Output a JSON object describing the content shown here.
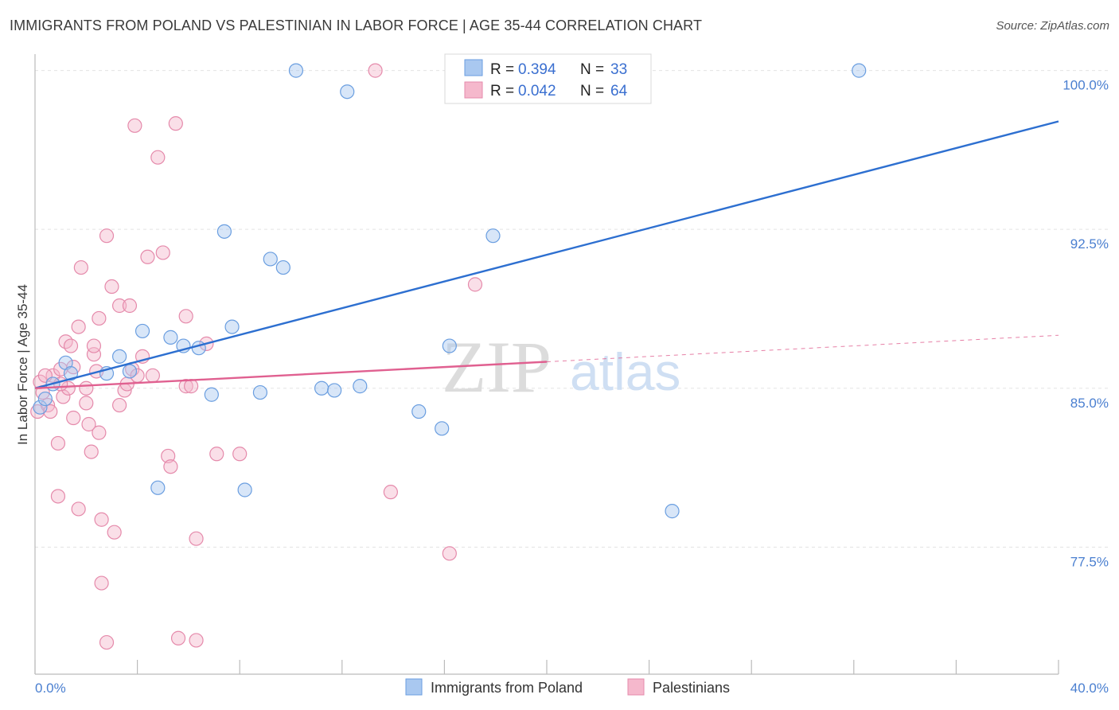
{
  "title": "IMMIGRANTS FROM POLAND VS PALESTINIAN IN LABOR FORCE | AGE 35-44 CORRELATION CHART",
  "source": "Source: ZipAtlas.com",
  "colors": {
    "blue_fill": "#a9c8f0",
    "blue_stroke": "#6a9ee0",
    "blue_line": "#2d6fd0",
    "pink_fill": "#f5b8cc",
    "pink_stroke": "#e58aab",
    "pink_line": "#e06090",
    "grid": "#e3e3e3",
    "tick_label": "#4a7fd0"
  },
  "legend": {
    "rows": [
      {
        "r_label": "R =",
        "r_value": "0.394",
        "n_label": "N =",
        "n_value": "33"
      },
      {
        "r_label": "R =",
        "r_value": "0.042",
        "n_label": "N =",
        "n_value": "64"
      }
    ]
  },
  "watermark": {
    "zip": "ZIP",
    "atlas": "atlas"
  },
  "chart_data": {
    "type": "scatter",
    "xlabel": "",
    "ylabel": "In Labor Force | Age 35-44",
    "xlim": [
      0,
      40
    ],
    "ylim": [
      71.5,
      101
    ],
    "x_tick_labels": [
      {
        "value": 0,
        "label": "0.0%"
      },
      {
        "value": 40,
        "label": "40.0%"
      }
    ],
    "y_tick_labels": [
      {
        "value": 100,
        "label": "100.0%"
      },
      {
        "value": 92.5,
        "label": "92.5%"
      },
      {
        "value": 85,
        "label": "85.0%"
      },
      {
        "value": 77.5,
        "label": "77.5%"
      }
    ],
    "grid": "horizontal dashed",
    "legend_position": "top-center",
    "series": [
      {
        "name": "Immigrants from Poland",
        "color": "blue",
        "trend": {
          "x": [
            0,
            40
          ],
          "y": [
            85.0,
            97.6
          ],
          "dashed_from": null
        },
        "points": [
          [
            0.2,
            84.1
          ],
          [
            0.4,
            84.5
          ],
          [
            0.7,
            85.2
          ],
          [
            1.2,
            86.2
          ],
          [
            1.4,
            85.7
          ],
          [
            2.8,
            85.7
          ],
          [
            3.3,
            86.5
          ],
          [
            3.7,
            85.8
          ],
          [
            4.2,
            87.7
          ],
          [
            4.8,
            80.3
          ],
          [
            5.3,
            87.4
          ],
          [
            5.8,
            87.0
          ],
          [
            6.4,
            86.9
          ],
          [
            6.9,
            84.7
          ],
          [
            7.4,
            92.4
          ],
          [
            7.7,
            87.9
          ],
          [
            8.2,
            80.2
          ],
          [
            8.8,
            84.8
          ],
          [
            9.2,
            91.1
          ],
          [
            9.7,
            90.7
          ],
          [
            10.2,
            100.0
          ],
          [
            11.2,
            85.0
          ],
          [
            11.7,
            84.9
          ],
          [
            12.2,
            99.0
          ],
          [
            12.7,
            85.1
          ],
          [
            15.0,
            83.9
          ],
          [
            15.9,
            83.1
          ],
          [
            16.2,
            87.0
          ],
          [
            17.2,
            100.0
          ],
          [
            17.9,
            92.2
          ],
          [
            19.2,
            100.0
          ],
          [
            24.9,
            79.2
          ],
          [
            32.2,
            100.0
          ]
        ]
      },
      {
        "name": "Palestinians",
        "color": "pink",
        "trend": {
          "x": [
            0,
            40
          ],
          "y": [
            85.0,
            87.5
          ],
          "dashed_from": 20
        },
        "points": [
          [
            0.1,
            83.9
          ],
          [
            0.2,
            85.3
          ],
          [
            0.3,
            84.8
          ],
          [
            0.5,
            84.2
          ],
          [
            0.6,
            83.9
          ],
          [
            0.7,
            85.6
          ],
          [
            0.9,
            79.9
          ],
          [
            0.9,
            82.4
          ],
          [
            1.0,
            85.9
          ],
          [
            1.1,
            84.6
          ],
          [
            1.2,
            87.2
          ],
          [
            1.3,
            85.0
          ],
          [
            1.4,
            87.0
          ],
          [
            1.5,
            86.0
          ],
          [
            1.5,
            83.6
          ],
          [
            1.7,
            87.9
          ],
          [
            1.7,
            79.3
          ],
          [
            1.8,
            90.7
          ],
          [
            2.0,
            85.0
          ],
          [
            2.0,
            84.3
          ],
          [
            2.1,
            83.3
          ],
          [
            2.2,
            82.0
          ],
          [
            2.3,
            86.6
          ],
          [
            2.3,
            87.0
          ],
          [
            2.5,
            82.9
          ],
          [
            2.5,
            88.3
          ],
          [
            2.6,
            75.8
          ],
          [
            2.6,
            78.8
          ],
          [
            2.8,
            73.0
          ],
          [
            2.8,
            92.2
          ],
          [
            3.0,
            89.8
          ],
          [
            3.1,
            78.2
          ],
          [
            3.3,
            88.9
          ],
          [
            3.3,
            84.2
          ],
          [
            3.5,
            84.9
          ],
          [
            3.6,
            85.2
          ],
          [
            3.7,
            88.9
          ],
          [
            3.8,
            85.9
          ],
          [
            3.9,
            97.4
          ],
          [
            4.0,
            85.6
          ],
          [
            4.2,
            86.5
          ],
          [
            4.4,
            91.2
          ],
          [
            4.6,
            85.6
          ],
          [
            4.8,
            95.9
          ],
          [
            5.0,
            91.4
          ],
          [
            5.2,
            81.8
          ],
          [
            5.3,
            81.3
          ],
          [
            5.5,
            97.5
          ],
          [
            5.6,
            73.2
          ],
          [
            5.9,
            88.4
          ],
          [
            5.9,
            85.1
          ],
          [
            6.1,
            85.1
          ],
          [
            6.3,
            77.9
          ],
          [
            6.3,
            73.1
          ],
          [
            6.7,
            87.1
          ],
          [
            7.1,
            81.9
          ],
          [
            8.0,
            81.9
          ],
          [
            13.3,
            100.0
          ],
          [
            13.9,
            80.1
          ],
          [
            16.2,
            77.2
          ],
          [
            17.2,
            89.9
          ],
          [
            1.0,
            85.2
          ],
          [
            0.4,
            85.6
          ],
          [
            2.4,
            85.8
          ]
        ]
      }
    ]
  }
}
